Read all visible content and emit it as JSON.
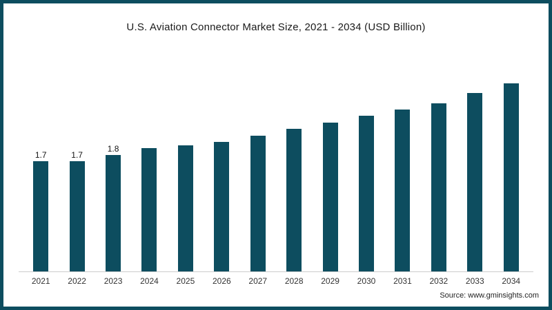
{
  "title": "U.S. Aviation Connector Market Size, 2021 - 2034 (USD Billion)",
  "source": "Source: www.gminsights.com",
  "colors": {
    "bar": "#0d4d5f",
    "border": "#0d4d5f",
    "baseline": "#cccccc"
  },
  "chart_data": {
    "type": "bar",
    "title": "U.S. Aviation Connector Market Size, 2021 - 2034 (USD Billion)",
    "categories": [
      "2021",
      "2022",
      "2023",
      "2024",
      "2025",
      "2026",
      "2027",
      "2028",
      "2029",
      "2030",
      "2031",
      "2032",
      "2033",
      "2034"
    ],
    "values": [
      1.7,
      1.7,
      1.8,
      1.9,
      1.95,
      2.0,
      2.1,
      2.2,
      2.3,
      2.4,
      2.5,
      2.6,
      2.75,
      2.9
    ],
    "data_labels": [
      "1.7",
      "1.7",
      "1.8",
      "",
      "",
      "",
      "",
      "",
      "",
      "",
      "",
      "",
      "",
      ""
    ],
    "xlabel": "",
    "ylabel": "",
    "ylim": [
      0,
      3
    ],
    "grid": false,
    "legend": false,
    "unit": "USD Billion",
    "source": "Source: www.gminsights.com"
  }
}
